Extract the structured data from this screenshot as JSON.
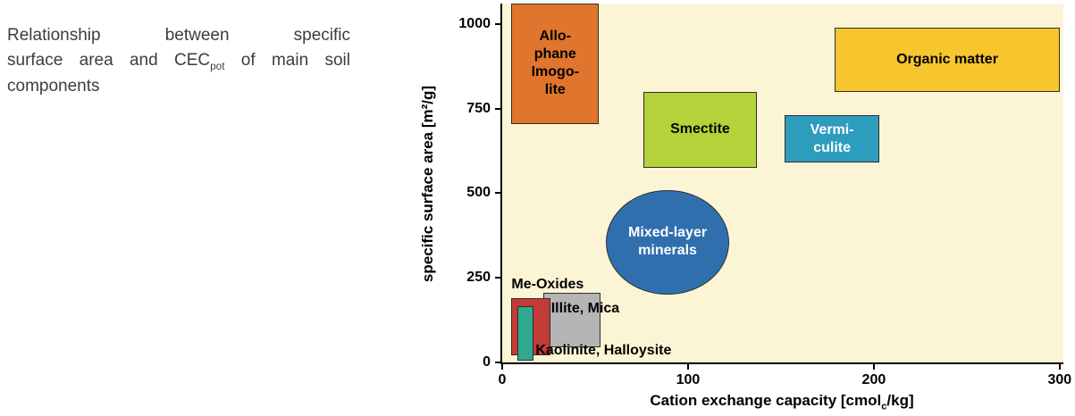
{
  "caption": {
    "line1": "Relationship between specific",
    "line2_pre": "surface area and CEC",
    "line2_sub": "pot",
    "line2_post": " of main soil",
    "line3": "components"
  },
  "chart_data": {
    "type": "area",
    "subtype": "labeled-regions",
    "title": "Relationship between specific surface area and CECpot of main soil components",
    "xlabel": "Cation exchange capacity [cmolc/kg]",
    "xlabel_pre": "Cation exchange capacity [cmol",
    "xlabel_sub": "c",
    "xlabel_post": "/kg]",
    "ylabel": "specific surface area [m²/g]",
    "xlim": [
      0,
      302
    ],
    "ylim": [
      0,
      1060
    ],
    "x_ticks": [
      0,
      100,
      200,
      300
    ],
    "y_ticks": [
      0,
      250,
      500,
      750,
      1000
    ],
    "plot_bg": "#FCF5D5",
    "grid": false,
    "regions": [
      {
        "name": "allophane-imogolite",
        "label": "Allo-\nphane\nImogo-\nlite",
        "shape": "rect",
        "x": [
          5,
          52
        ],
        "y": [
          705,
          1060
        ],
        "fill": "#E0752D",
        "text_color": "#000000",
        "label_pos": "center"
      },
      {
        "name": "organic-matter",
        "label": "Organic matter",
        "shape": "rect",
        "x": [
          179,
          300
        ],
        "y": [
          800,
          990
        ],
        "fill": "#F7C52E",
        "text_color": "#000000",
        "label_pos": "center"
      },
      {
        "name": "smectite",
        "label": "Smectite",
        "shape": "rect",
        "x": [
          76,
          137
        ],
        "y": [
          575,
          800
        ],
        "fill": "#B4D23A",
        "text_color": "#000000",
        "label_pos": "center"
      },
      {
        "name": "vermiculite",
        "label": "Vermi-\nculite",
        "shape": "rect",
        "x": [
          152,
          203
        ],
        "y": [
          590,
          730
        ],
        "fill": "#2D9DBE",
        "text_color": "#ffffff",
        "label_pos": "center"
      },
      {
        "name": "mixed-layer-minerals",
        "label": "Mixed-layer\nminerals",
        "shape": "ellipse",
        "x": [
          56,
          122
        ],
        "y": [
          200,
          510
        ],
        "fill": "#2F6FAE",
        "text_color": "#ffffff",
        "label_pos": "center"
      },
      {
        "name": "illite-mica",
        "label": "Illite, Mica",
        "shape": "rect",
        "x": [
          22,
          53
        ],
        "y": [
          45,
          205
        ],
        "fill": "#B5B5B5",
        "text_color": "#000000",
        "label_pos": "inside-top"
      },
      {
        "name": "me-oxides",
        "label": "Me-Oxides",
        "shape": "rect",
        "x": [
          5,
          26
        ],
        "y": [
          20,
          190
        ],
        "fill": "#C23B38",
        "text_color": "#000000",
        "label_pos": "above"
      },
      {
        "name": "kaolinite-halloysite",
        "label": "Kaolinite, Halloysite",
        "shape": "rect",
        "x": [
          8,
          17
        ],
        "y": [
          5,
          165
        ],
        "fill": "#2FAA8E",
        "text_color": "#000000",
        "label_pos": "right-bottom"
      }
    ]
  }
}
